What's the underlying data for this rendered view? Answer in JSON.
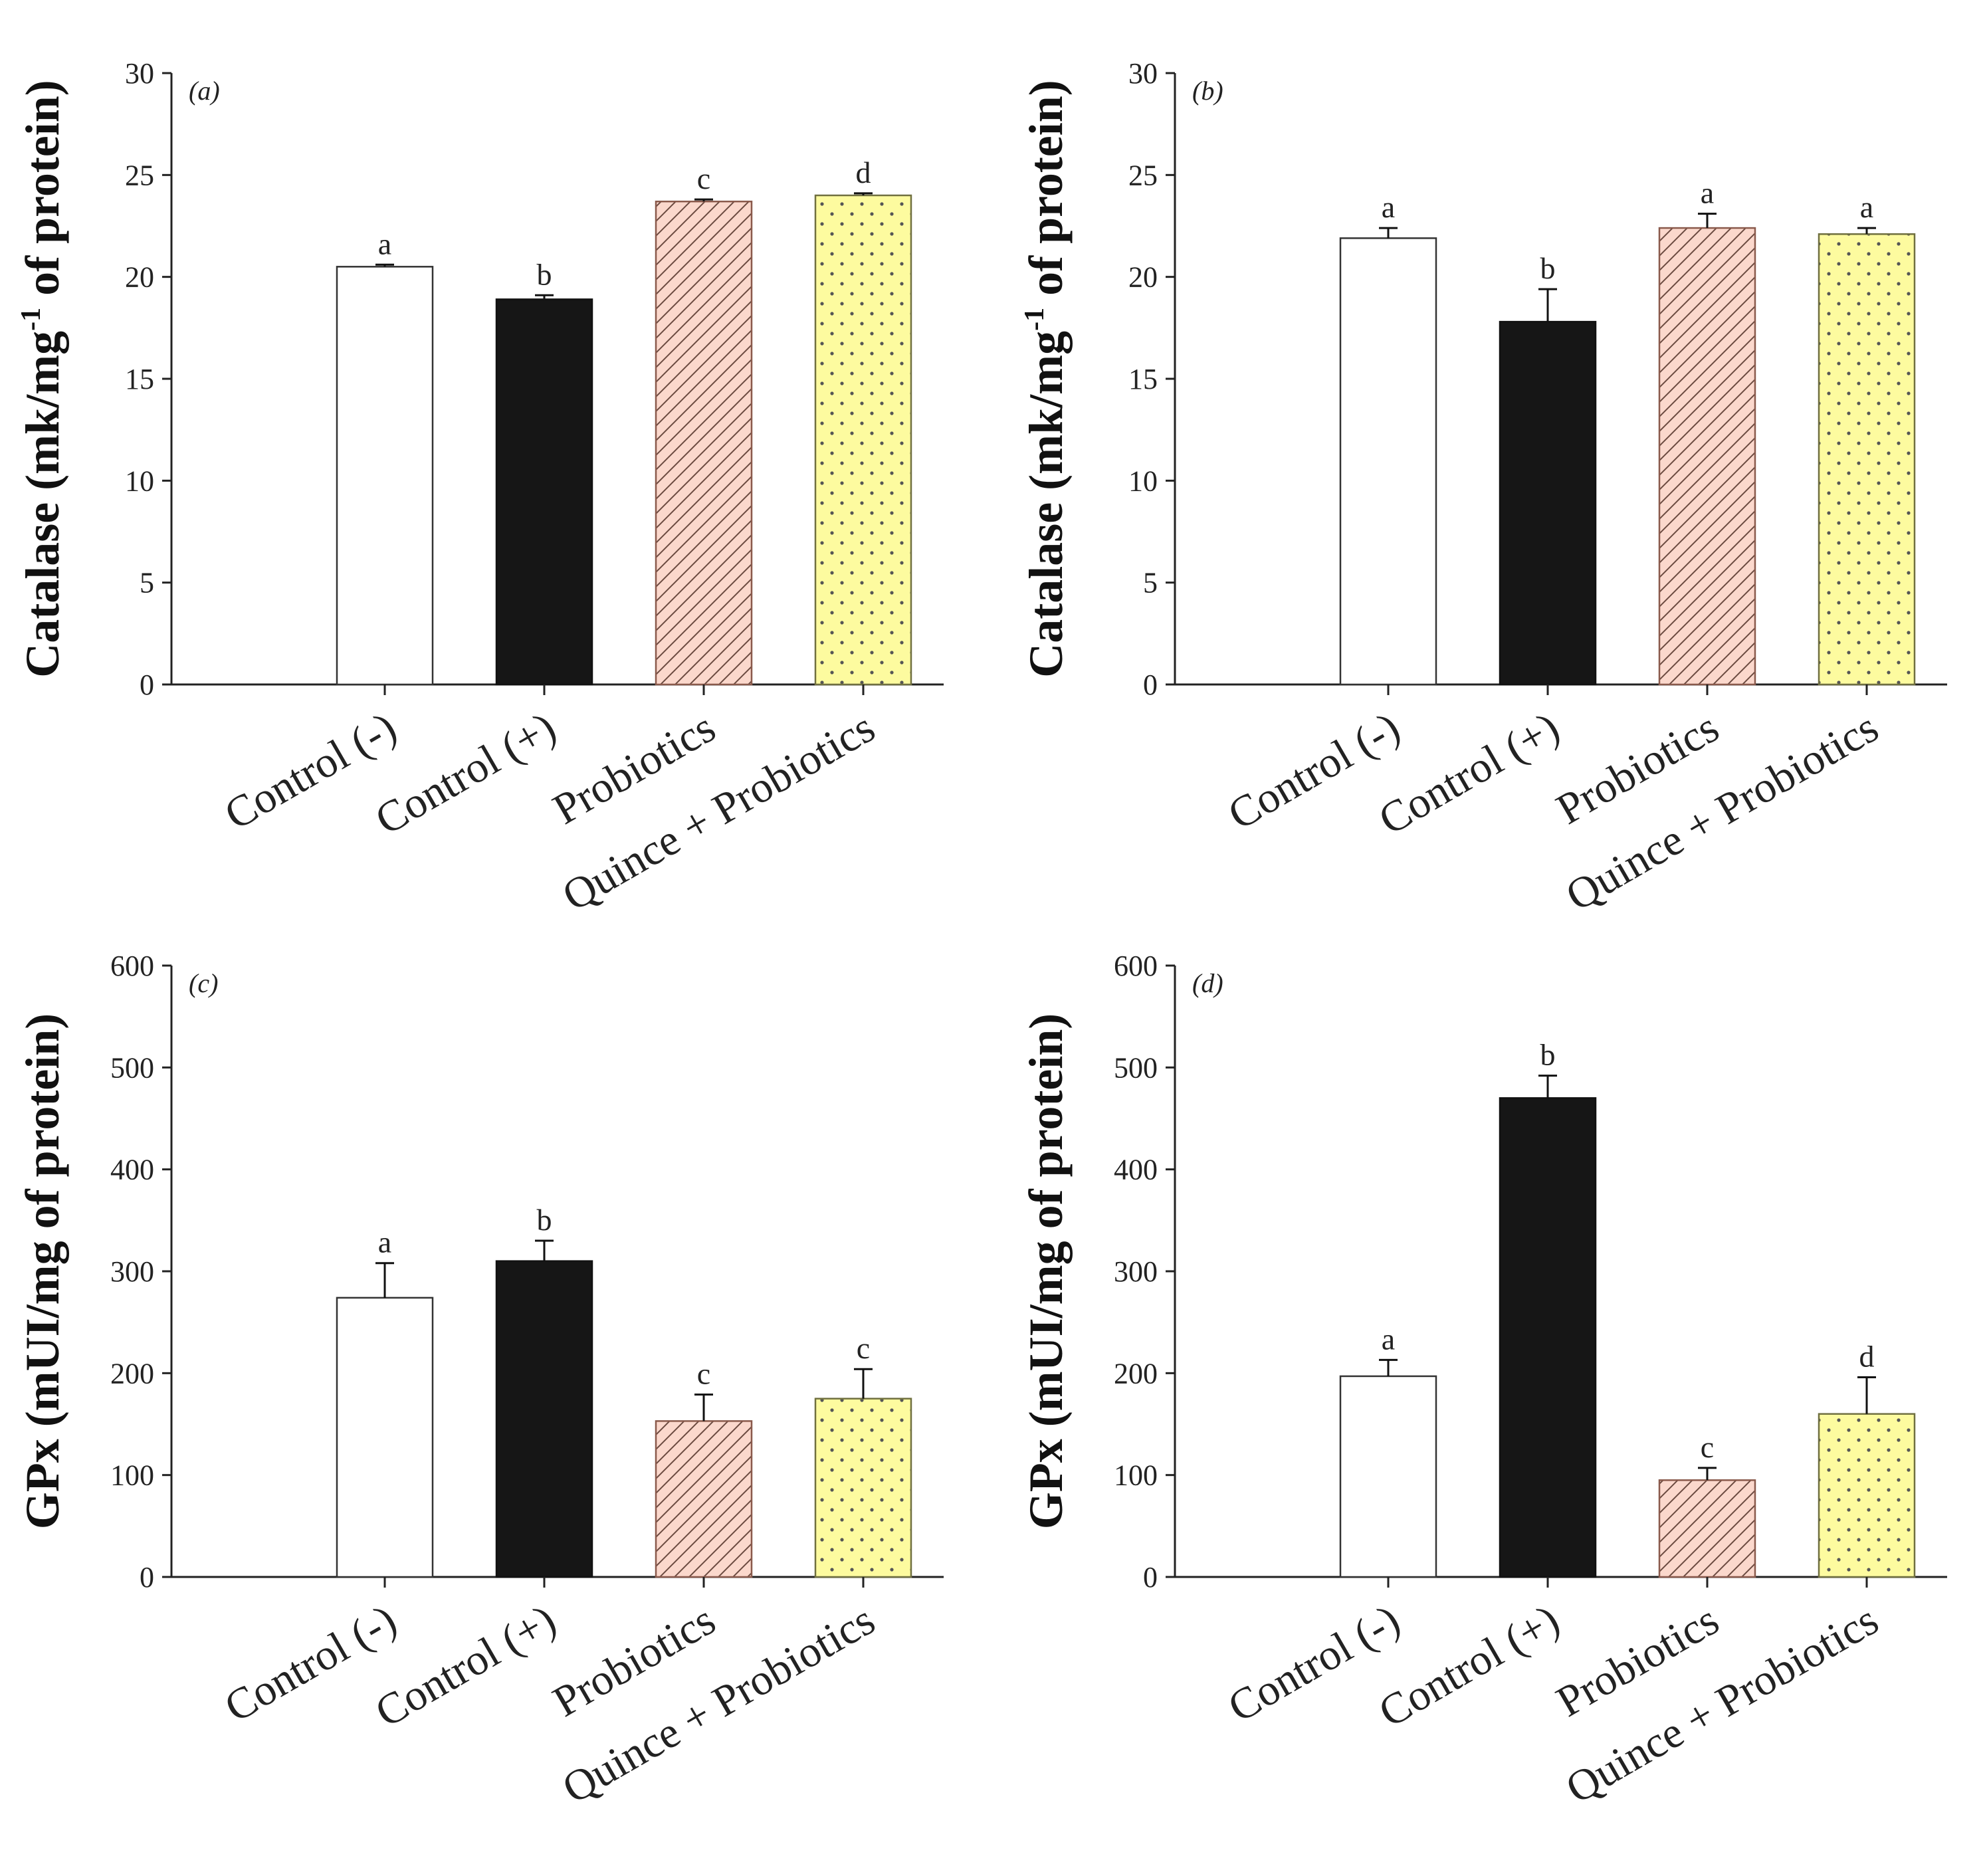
{
  "chart_data": [
    {
      "type": "bar",
      "panel_label": "(a)",
      "ylabel_main": "Catalase (mk/mg",
      "ylabel_sup": "-1",
      "ylabel_tail": " of protein)",
      "categories": [
        "Control (-)",
        "Control (+)",
        "Probiotics",
        "Quince + Probiotics"
      ],
      "values": [
        20.5,
        18.9,
        23.7,
        24.0
      ],
      "errors": [
        0.1,
        0.2,
        0.1,
        0.1
      ],
      "significance": [
        "a",
        "b",
        "c",
        "d"
      ],
      "ylim": [
        0,
        30
      ],
      "yticks": [
        0,
        5,
        10,
        15,
        20,
        25,
        30
      ]
    },
    {
      "type": "bar",
      "panel_label": "(b)",
      "ylabel_main": "Catalase (mk/mg",
      "ylabel_sup": "-1",
      "ylabel_tail": " of protein)",
      "categories": [
        "Control (-)",
        "Control (+)",
        "Probiotics",
        "Quince + Probiotics"
      ],
      "values": [
        21.9,
        17.8,
        22.4,
        22.1
      ],
      "errors": [
        0.5,
        1.6,
        0.7,
        0.3
      ],
      "significance": [
        "a",
        "b",
        "a",
        "a"
      ],
      "ylim": [
        0,
        30
      ],
      "yticks": [
        0,
        5,
        10,
        15,
        20,
        25,
        30
      ]
    },
    {
      "type": "bar",
      "panel_label": "(c)",
      "ylabel_main": "GPx (mUI/mg of protein)",
      "ylabel_sup": "",
      "ylabel_tail": "",
      "categories": [
        "Control (-)",
        "Control (+)",
        "Probiotics",
        "Quince + Probiotics"
      ],
      "values": [
        274,
        310,
        153,
        175
      ],
      "errors": [
        34,
        20,
        26,
        29
      ],
      "significance": [
        "a",
        "b",
        "c",
        "c"
      ],
      "ylim": [
        0,
        600
      ],
      "yticks": [
        0,
        100,
        200,
        300,
        400,
        500,
        600
      ]
    },
    {
      "type": "bar",
      "panel_label": "(d)",
      "ylabel_main": "GPx (mUI/mg of protein)",
      "ylabel_sup": "",
      "ylabel_tail": "",
      "categories": [
        "Control (-)",
        "Control (+)",
        "Probiotics",
        "Quince + Probiotics"
      ],
      "values": [
        197,
        470,
        95,
        160
      ],
      "errors": [
        16,
        22,
        12,
        36
      ],
      "significance": [
        "a",
        "b",
        "c",
        "d"
      ],
      "ylim": [
        0,
        600
      ],
      "yticks": [
        0,
        100,
        200,
        300,
        400,
        500,
        600
      ]
    }
  ],
  "colors": {
    "control_neg": "#ffffff",
    "control_pos": "#161616",
    "probiotics": "#fbd8cc",
    "quince_probiotics": "#fdfb9f",
    "axis": "#222222"
  }
}
